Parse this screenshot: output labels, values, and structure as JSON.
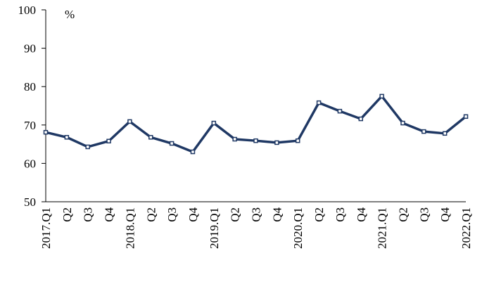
{
  "chart_data": {
    "type": "line",
    "unit_label": "%",
    "categories": [
      "2017.Q1",
      "Q2",
      "Q3",
      "Q4",
      "2018.Q1",
      "Q2",
      "Q3",
      "Q4",
      "2019.Q1",
      "Q2",
      "Q3",
      "Q4",
      "2020.Q1",
      "Q2",
      "Q3",
      "Q4",
      "2021.Q1",
      "Q2",
      "Q3",
      "Q4",
      "2022.Q1"
    ],
    "values": [
      68.1,
      66.8,
      64.3,
      65.8,
      70.9,
      66.8,
      65.2,
      63.0,
      70.5,
      66.3,
      65.9,
      65.4,
      65.9,
      75.8,
      73.6,
      71.6,
      77.5,
      70.5,
      68.3,
      67.8,
      72.2
    ],
    "color": "#1f3864",
    "ylim": [
      50,
      100
    ],
    "yticks": [
      50,
      60,
      70,
      80,
      90,
      100
    ]
  }
}
